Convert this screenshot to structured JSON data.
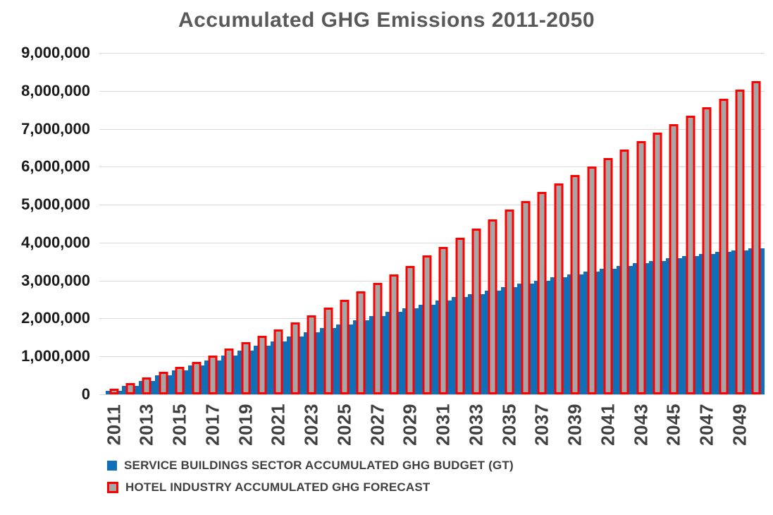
{
  "title": "Accumulated GHG Emissions 2011-2050",
  "colors": {
    "title_text": "#595959",
    "y_axis_text": "#1a1a1a",
    "x_axis_text": "#404040",
    "gridline": "#d9d9d9",
    "budget_blue": "#0f70b8",
    "forecast_border_red": "#fe0000",
    "forecast_fill_gray": "#a6a6a6",
    "legend_text": "#404040"
  },
  "chart_data": {
    "type": "bar",
    "title": "Accumulated GHG Emissions 2011-2050",
    "xlabel": "",
    "ylabel": "",
    "x": [
      2011,
      2012,
      2013,
      2014,
      2015,
      2016,
      2017,
      2018,
      2019,
      2020,
      2021,
      2022,
      2023,
      2024,
      2025,
      2026,
      2027,
      2028,
      2029,
      2030,
      2031,
      2032,
      2033,
      2034,
      2035,
      2036,
      2037,
      2038,
      2039,
      2040,
      2041,
      2042,
      2043,
      2044,
      2045,
      2046,
      2047,
      2048,
      2049,
      2050
    ],
    "x_tick_labels": [
      "2011",
      "2013",
      "2015",
      "2017",
      "2019",
      "2021",
      "2023",
      "2025",
      "2027",
      "2029",
      "2031",
      "2033",
      "2035",
      "2037",
      "2039",
      "2041",
      "2043",
      "2045",
      "2047",
      "2049"
    ],
    "ylim": [
      0,
      9000000
    ],
    "y_tick_interval": 1000000,
    "y_tick_labels_top_to_bottom": [
      "9,000,000",
      "8,000,000",
      "7,000,000",
      "6,000,000",
      "5,000,000",
      "4,000,000",
      "3,000,000",
      "2,000,000",
      "1,000,000",
      "0"
    ],
    "grid": "horizontal",
    "legend_position": "bottom-left",
    "series": [
      {
        "name": "SERVICE BUILDINGS SECTOR ACCUMULATED GHG BUDGET (GT)",
        "style": "solid blue full-width bars (continuous area look)",
        "values": [
          90000,
          230000,
          360000,
          500000,
          630000,
          760000,
          900000,
          1030000,
          1160000,
          1280000,
          1400000,
          1520000,
          1630000,
          1740000,
          1850000,
          1960000,
          2070000,
          2170000,
          2270000,
          2370000,
          2470000,
          2560000,
          2650000,
          2740000,
          2830000,
          2920000,
          3000000,
          3080000,
          3160000,
          3240000,
          3310000,
          3380000,
          3450000,
          3520000,
          3580000,
          3640000,
          3700000,
          3750000,
          3800000,
          3850000
        ]
      },
      {
        "name": "HOTEL INDUSTRY ACCUMULATED GHG FORECAST",
        "style": "narrow bars, thick red outline, gray fill",
        "values": [
          130000,
          290000,
          450000,
          590000,
          720000,
          860000,
          1030000,
          1200000,
          1370000,
          1540000,
          1720000,
          1900000,
          2090000,
          2290000,
          2500000,
          2720000,
          2940000,
          3160000,
          3390000,
          3660000,
          3890000,
          4130000,
          4370000,
          4610000,
          4870000,
          5100000,
          5330000,
          5560000,
          5780000,
          6010000,
          6230000,
          6450000,
          6680000,
          6900000,
          7120000,
          7350000,
          7570000,
          7800000,
          8030000,
          8250000
        ]
      }
    ]
  },
  "legend": {
    "items": [
      {
        "label": "SERVICE BUILDINGS SECTOR ACCUMULATED GHG BUDGET (GT)",
        "marker": "blue-square"
      },
      {
        "label": "HOTEL INDUSTRY ACCUMULATED GHG FORECAST",
        "marker": "red-outlined-gray-square"
      }
    ]
  }
}
